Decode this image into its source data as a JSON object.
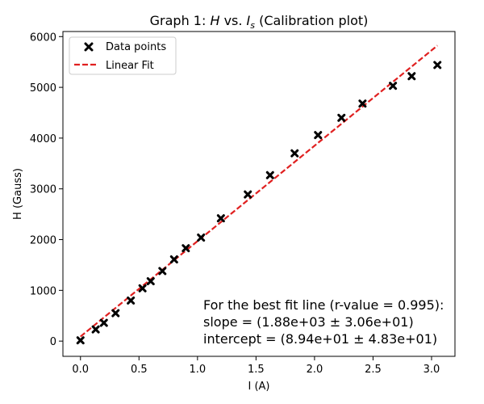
{
  "chart_data": {
    "type": "scatter",
    "title_prefix": "Graph 1: ",
    "title_h": "H",
    "title_vs": " vs. ",
    "title_i": "I",
    "title_sub": "s",
    "title_suffix": " (Calibration plot)",
    "xlabel": "I (A)",
    "ylabel": "H (Gauss)",
    "xlim": [
      -0.15,
      3.2
    ],
    "ylim": [
      -300,
      6100
    ],
    "xticks": [
      0.0,
      0.5,
      1.0,
      1.5,
      2.0,
      2.5,
      3.0
    ],
    "xtick_labels": [
      "0.0",
      "0.5",
      "1.0",
      "1.5",
      "2.0",
      "2.5",
      "3.0"
    ],
    "yticks": [
      0,
      1000,
      2000,
      3000,
      4000,
      5000,
      6000
    ],
    "ytick_labels": [
      "0",
      "1000",
      "2000",
      "3000",
      "4000",
      "5000",
      "6000"
    ],
    "grid": false,
    "legend_position": "top-left",
    "series": [
      {
        "name": "Data points",
        "kind": "scatter",
        "marker": "X",
        "color": "#000000",
        "x": [
          0.0,
          0.13,
          0.2,
          0.3,
          0.43,
          0.53,
          0.6,
          0.7,
          0.8,
          0.9,
          1.03,
          1.2,
          1.43,
          1.62,
          1.83,
          2.03,
          2.23,
          2.41,
          2.67,
          2.83,
          3.05
        ],
        "y": [
          15,
          230,
          360,
          550,
          800,
          1040,
          1180,
          1380,
          1610,
          1830,
          2040,
          2420,
          2890,
          3270,
          3700,
          4060,
          4400,
          4680,
          5030,
          5220,
          5440
        ]
      },
      {
        "name": "Linear Fit",
        "kind": "line",
        "style": "dashed",
        "color": "#e02020",
        "x": [
          0.0,
          3.05
        ],
        "y": [
          89.4,
          5823
        ]
      }
    ],
    "annotation": {
      "line1": "For the best fit line (r-value = 0.995):",
      "line2": "slope = (1.88e+03 ± 3.06e+01)",
      "line3": "intercept = (8.94e+01 ± 4.83e+01)"
    }
  }
}
